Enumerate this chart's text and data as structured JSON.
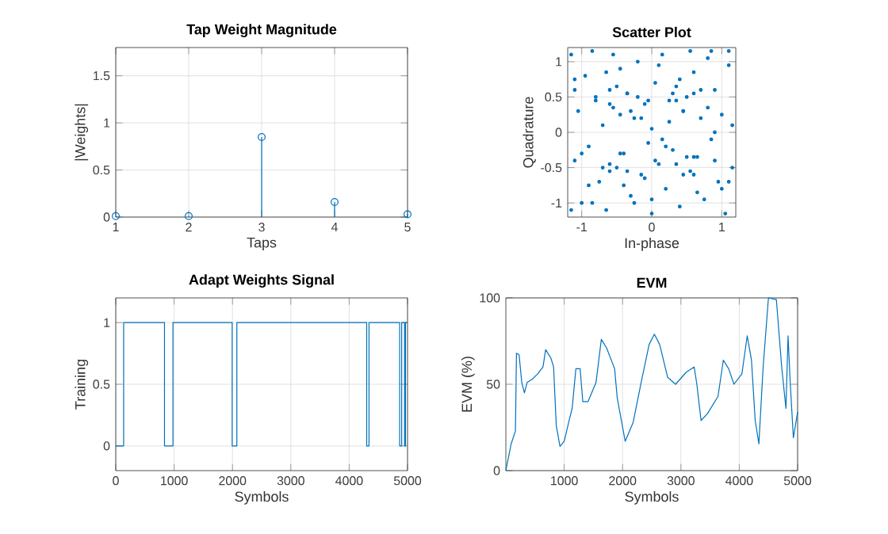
{
  "chart_data": [
    {
      "type": "lollipop",
      "title": "Tap Weight Magnitude",
      "xlabel": "Taps",
      "ylabel": "|Weights|",
      "x": [
        1,
        2,
        3,
        4,
        5
      ],
      "values": [
        0.01,
        0.01,
        0.85,
        0.16,
        0.03
      ],
      "color": "#0072bd",
      "xlim": [
        1,
        5
      ],
      "ylim": [
        0,
        1.8
      ],
      "xticks": [
        1,
        2,
        3,
        4,
        5
      ],
      "yticks": [
        0,
        0.5,
        1,
        1.5
      ],
      "grid": true,
      "marker": "circle"
    },
    {
      "type": "scatter",
      "title": "Scatter Plot",
      "xlabel": "In-phase",
      "ylabel": "Quadrature",
      "color": "#0072bd",
      "xlim": [
        -1.2,
        1.2
      ],
      "ylim": [
        -1.2,
        1.2
      ],
      "xticks": [
        -1,
        0,
        1
      ],
      "yticks": [
        -1,
        -0.5,
        0,
        0.5,
        1
      ],
      "grid": true,
      "marker": "circle",
      "x": [
        -1.15,
        -1.1,
        -1.05,
        -1.0,
        -0.95,
        -0.9,
        -0.85,
        -0.8,
        -0.75,
        -0.7,
        -0.65,
        -0.6,
        -0.55,
        -0.5,
        -0.45,
        -0.4,
        -0.35,
        -0.3,
        -0.25,
        -0.2,
        -0.15,
        -0.1,
        -0.05,
        0.0,
        0.05,
        0.1,
        0.15,
        0.2,
        0.25,
        0.3,
        0.35,
        0.4,
        0.45,
        0.5,
        0.55,
        0.6,
        0.65,
        0.7,
        0.75,
        0.8,
        0.85,
        0.9,
        0.95,
        1.0,
        1.05,
        1.1,
        1.15,
        -1.1,
        -0.9,
        -0.7,
        -0.5,
        -0.3,
        -0.1,
        0.1,
        0.3,
        0.5,
        0.7,
        0.9,
        1.1,
        -1.0,
        -0.8,
        -0.6,
        -0.4,
        -0.2,
        0.0,
        0.2,
        0.4,
        0.6,
        0.8,
        1.0,
        -1.15,
        -0.85,
        -0.55,
        -0.25,
        0.25,
        0.55,
        0.85,
        1.15,
        -0.6,
        -0.45,
        -0.35,
        0.35,
        0.45,
        0.6,
        -0.6,
        -0.45,
        -0.35,
        0.35,
        0.45,
        0.6,
        -1.1,
        -0.65,
        0.65,
        1.1,
        -0.05,
        0.05,
        0.0,
        0.15,
        -0.15,
        0.9
      ],
      "values": [
        1.1,
        -0.4,
        0.3,
        -1.0,
        0.8,
        -0.2,
        1.15,
        0.5,
        -0.7,
        0.1,
        -1.1,
        0.6,
        0.35,
        -0.5,
        0.9,
        -0.3,
        0.55,
        -0.9,
        0.2,
        1.0,
        -0.6,
        0.4,
        -0.15,
        0.05,
        0.7,
        -0.45,
        1.1,
        -0.8,
        0.45,
        -0.25,
        0.65,
        -1.05,
        0.3,
        0.5,
        -0.55,
        0.85,
        -0.35,
        0.2,
        -0.95,
        1.05,
        -0.1,
        0.6,
        -0.7,
        0.25,
        -1.15,
        0.95,
        -0.5,
        0.6,
        -0.75,
        -0.5,
        0.65,
        0.3,
        -0.65,
        0.95,
        0.55,
        -0.35,
        0.6,
        -0.4,
        1.15,
        -0.3,
        0.45,
        -0.55,
        -0.75,
        0.5,
        -0.95,
        -0.2,
        0.75,
        -0.6,
        0.35,
        -0.8,
        -1.1,
        -1.0,
        1.1,
        -1.0,
        0.15,
        1.15,
        1.15,
        0.1,
        0.4,
        0.25,
        0.55,
        -0.45,
        -0.6,
        -0.35,
        -0.45,
        -0.3,
        -0.55,
        0.45,
        0.3,
        0.55,
        0.75,
        0.85,
        -0.85,
        -0.7,
        0.45,
        -0.4,
        -1.15,
        -0.1,
        0.2,
        0.0
      ]
    },
    {
      "type": "step",
      "title": "Adapt Weights Signal",
      "xlabel": "Symbols",
      "ylabel": "Training",
      "color": "#0072bd",
      "x": [
        0,
        135,
        835,
        980,
        1995,
        2075,
        4300,
        4340,
        4865,
        4900,
        4950,
        4965,
        5000
      ],
      "values": [
        0,
        1,
        0,
        1,
        0,
        1,
        0,
        1,
        0,
        1,
        0,
        1,
        1
      ],
      "xlim": [
        0,
        5000
      ],
      "ylim": [
        -0.2,
        1.2
      ],
      "xticks": [
        0,
        1000,
        2000,
        3000,
        4000,
        5000
      ],
      "yticks": [
        0,
        0.5,
        1
      ],
      "grid": true
    },
    {
      "type": "line",
      "title": "EVM",
      "xlabel": "Symbols",
      "ylabel": "EVM (%)",
      "color": "#0072bd",
      "xlim": [
        0,
        5000
      ],
      "ylim": [
        0,
        100
      ],
      "xticks": [
        1000,
        2000,
        3000,
        4000,
        5000
      ],
      "yticks": [
        0,
        50,
        100
      ],
      "grid": true,
      "x": [
        0,
        91,
        164,
        182,
        227,
        273,
        318,
        364,
        455,
        545,
        636,
        682,
        773,
        818,
        864,
        927,
        1000,
        1091,
        1136,
        1200,
        1273,
        1318,
        1409,
        1545,
        1636,
        1727,
        1864,
        1909,
        2045,
        2182,
        2318,
        2455,
        2545,
        2636,
        2773,
        2909,
        3091,
        3227,
        3273,
        3345,
        3455,
        3636,
        3727,
        3818,
        3909,
        4045,
        4136,
        4209,
        4273,
        4336,
        4409,
        4500,
        4636,
        4727,
        4800,
        4836,
        4873,
        4927,
        5000
      ],
      "values": [
        0,
        15.5,
        23,
        68,
        67,
        51,
        45,
        51,
        53,
        56,
        60,
        70,
        65,
        60,
        26,
        14,
        17,
        30,
        36,
        59,
        59,
        40,
        40,
        51,
        76,
        71,
        59,
        42,
        17,
        28,
        51,
        73,
        79,
        73,
        54,
        50,
        57,
        60,
        50,
        29,
        33,
        43,
        64,
        59,
        50,
        56,
        78,
        64,
        29,
        15.5,
        60,
        100,
        99,
        60,
        36,
        78,
        51,
        19,
        34
      ]
    }
  ]
}
